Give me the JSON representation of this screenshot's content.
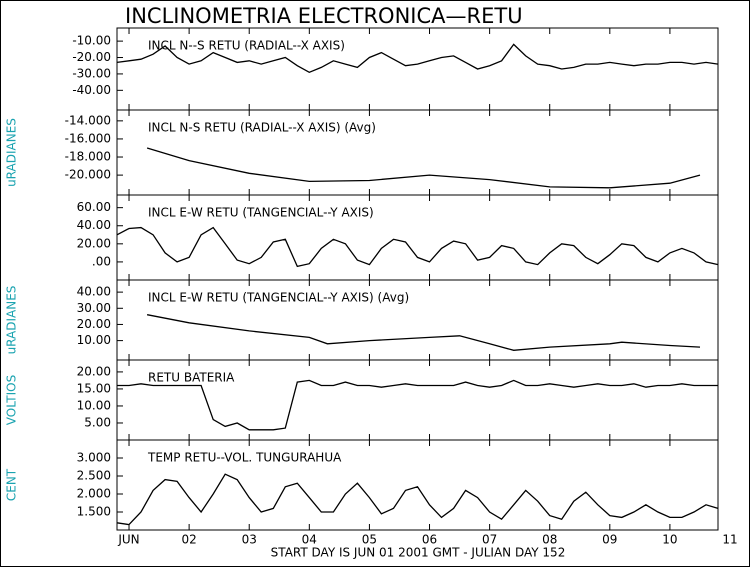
{
  "title": "INCLINOMETRIA ELECTRONICA—RETU",
  "xlabel": "START DAY IS JUN 01 2001 GMT    - JULIAN DAY 152",
  "xlim": [
    0.8,
    10.8
  ],
  "xticks": [
    {
      "value": 1,
      "label": "JUN"
    },
    {
      "value": 2,
      "label": "02"
    },
    {
      "value": 3,
      "label": "03"
    },
    {
      "value": 4,
      "label": "04"
    },
    {
      "value": 5,
      "label": "05"
    },
    {
      "value": 6,
      "label": "06"
    },
    {
      "value": 7,
      "label": "07"
    },
    {
      "value": 8,
      "label": "08"
    },
    {
      "value": 9,
      "label": "09"
    },
    {
      "value": 10,
      "label": "10"
    },
    11
  ],
  "chart_data": [
    {
      "type": "line",
      "title": "INCL N--S RETU (RADIAL--X AXIS)",
      "color": "#000000",
      "ylim": [
        -52,
        -2
      ],
      "yticks": [
        {
          "value": -10,
          "label": "-10.00"
        },
        {
          "value": -20,
          "label": "-20.00"
        },
        {
          "value": -30,
          "label": "-30.00"
        },
        {
          "value": -40,
          "label": "-40.00"
        }
      ],
      "x": [
        0.8,
        1,
        1.2,
        1.4,
        1.6,
        1.8,
        2,
        2.2,
        2.4,
        2.6,
        2.8,
        3,
        3.2,
        3.4,
        3.6,
        3.8,
        4,
        4.2,
        4.4,
        4.6,
        4.8,
        5,
        5.2,
        5.4,
        5.6,
        5.8,
        6,
        6.2,
        6.4,
        6.6,
        6.8,
        7,
        7.2,
        7.4,
        7.6,
        7.8,
        8,
        8.2,
        8.4,
        8.6,
        8.8,
        9,
        9.2,
        9.4,
        9.6,
        9.8,
        10,
        10.2,
        10.4,
        10.6,
        10.8
      ],
      "values": [
        -23,
        -22,
        -21,
        -18,
        -13,
        -20,
        -24,
        -22,
        -17,
        -20,
        -23,
        -22,
        -24,
        -22,
        -20,
        -25,
        -29,
        -26,
        -22,
        -24,
        -26,
        -20,
        -17,
        -21,
        -25,
        -24,
        -22,
        -20,
        -19,
        -23,
        -27,
        -25,
        -22,
        -12,
        -19,
        -24,
        -25,
        -27,
        -26,
        -24,
        -24,
        -23,
        -24,
        -25,
        -24,
        -24,
        -23,
        -23,
        -24,
        -23,
        -24
      ]
    },
    {
      "type": "line",
      "title": "INCL N-S RETU (RADIAL--X AXIS) (Avg)",
      "ylabel": "uRADIANES",
      "color": "#000000",
      "ylim": [
        -22.2,
        -12.8
      ],
      "yticks": [
        {
          "value": -14,
          "label": "-14.000"
        },
        {
          "value": -16,
          "label": "-16.000"
        },
        {
          "value": -18,
          "label": "-18.000"
        },
        {
          "value": -20,
          "label": "-20.000"
        }
      ],
      "x": [
        1.3,
        2,
        3,
        4,
        5,
        6,
        7,
        8,
        9,
        10,
        10.5
      ],
      "values": [
        -17.0,
        -18.4,
        -19.8,
        -20.7,
        -20.6,
        -20.0,
        -20.5,
        -21.3,
        -21.4,
        -20.9,
        -20.0
      ]
    },
    {
      "type": "line",
      "title": "INCL E-W RETU (TANGENCIAL--Y AXIS)",
      "color": "#000000",
      "ylim": [
        -20,
        74
      ],
      "yticks": [
        {
          "value": 60,
          "label": "60.00"
        },
        {
          "value": 40,
          "label": "40.00"
        },
        {
          "value": 20,
          "label": "20.00"
        },
        {
          "value": 0,
          "label": ".00"
        }
      ],
      "x": [
        0.8,
        1,
        1.2,
        1.4,
        1.6,
        1.8,
        2,
        2.2,
        2.4,
        2.6,
        2.8,
        3,
        3.2,
        3.4,
        3.6,
        3.8,
        4,
        4.2,
        4.4,
        4.6,
        4.8,
        5,
        5.2,
        5.4,
        5.6,
        5.8,
        6,
        6.2,
        6.4,
        6.6,
        6.8,
        7,
        7.2,
        7.4,
        7.6,
        7.8,
        8,
        8.2,
        8.4,
        8.6,
        8.8,
        9,
        9.2,
        9.4,
        9.6,
        9.8,
        10,
        10.2,
        10.4,
        10.6,
        10.8
      ],
      "values": [
        30,
        37,
        38,
        30,
        10,
        0,
        5,
        30,
        38,
        20,
        2,
        -2,
        5,
        22,
        25,
        -5,
        -2,
        15,
        25,
        20,
        2,
        -3,
        15,
        25,
        22,
        5,
        0,
        15,
        23,
        20,
        2,
        5,
        18,
        15,
        0,
        -3,
        10,
        20,
        18,
        5,
        -2,
        8,
        20,
        18,
        5,
        0,
        10,
        15,
        10,
        0,
        -3
      ]
    },
    {
      "type": "line",
      "title": "INCL E-W RETU (TANGENCIAL--Y AXIS) (Avg)",
      "ylabel": "uRADIANES",
      "color": "#000000",
      "ylim": [
        -2,
        47.5
      ],
      "yticks": [
        {
          "value": 40,
          "label": "40.00"
        },
        {
          "value": 30,
          "label": "30.00"
        },
        {
          "value": 20,
          "label": "20.00"
        },
        {
          "value": 10,
          "label": "10.00"
        }
      ],
      "x": [
        1.3,
        2,
        3,
        4,
        4.3,
        5,
        6,
        6.5,
        7,
        7.4,
        8,
        9,
        9.2,
        10,
        10.5
      ],
      "values": [
        26,
        21,
        16,
        12,
        8,
        10,
        12,
        13,
        8,
        4,
        6,
        8,
        9,
        7,
        6
      ]
    },
    {
      "type": "line",
      "title": "RETU BATERIA",
      "ylabel": "VOLTIOS",
      "color": "#000000",
      "ylim": [
        0,
        23.5
      ],
      "yticks": [
        {
          "value": 20,
          "label": "20.00"
        },
        {
          "value": 15,
          "label": "15.00"
        },
        {
          "value": 10,
          "label": "10.00"
        },
        {
          "value": 5,
          "label": "5.00"
        }
      ],
      "x": [
        0.8,
        1,
        1.2,
        1.4,
        1.6,
        1.8,
        2,
        2.2,
        2.4,
        2.6,
        2.8,
        3,
        3.2,
        3.4,
        3.6,
        3.8,
        4,
        4.2,
        4.4,
        4.6,
        4.8,
        5,
        5.2,
        5.4,
        5.6,
        5.8,
        6,
        6.2,
        6.4,
        6.6,
        6.8,
        7,
        7.2,
        7.4,
        7.6,
        7.8,
        8,
        8.2,
        8.4,
        8.6,
        8.8,
        9,
        9.2,
        9.4,
        9.6,
        9.8,
        10,
        10.2,
        10.4,
        10.6,
        10.8
      ],
      "values": [
        16,
        16,
        16.5,
        16,
        16,
        16,
        16,
        16,
        6,
        4,
        5,
        3,
        3,
        3,
        3.5,
        17,
        17.5,
        16,
        16,
        17,
        16,
        16,
        15.5,
        16,
        16.5,
        16,
        16,
        16,
        16,
        17,
        16,
        15.5,
        16,
        17.5,
        16,
        16,
        16.5,
        16,
        15.5,
        16,
        16.5,
        16,
        16,
        16.5,
        15.5,
        16,
        16,
        16.5,
        16,
        16,
        16
      ]
    },
    {
      "type": "line",
      "title": "TEMP RETU--VOL. TUNGURAHUA",
      "ylabel": "CENT",
      "color": "#000000",
      "ylim": [
        1.0,
        3.5
      ],
      "yticks": [
        {
          "value": 3,
          "label": "3.000"
        },
        {
          "value": 2.5,
          "label": "2.500"
        },
        {
          "value": 2,
          "label": "2.000"
        },
        {
          "value": 1.5,
          "label": "1.500"
        }
      ],
      "x": [
        0.8,
        1,
        1.2,
        1.4,
        1.6,
        1.8,
        2,
        2.2,
        2.4,
        2.6,
        2.8,
        3,
        3.2,
        3.4,
        3.6,
        3.8,
        4,
        4.2,
        4.4,
        4.6,
        4.8,
        5,
        5.2,
        5.4,
        5.6,
        5.8,
        6,
        6.2,
        6.4,
        6.6,
        6.8,
        7,
        7.2,
        7.4,
        7.6,
        7.8,
        8,
        8.2,
        8.4,
        8.6,
        8.8,
        9,
        9.2,
        9.4,
        9.6,
        9.8,
        10,
        10.2,
        10.4,
        10.6,
        10.8
      ],
      "values": [
        1.2,
        1.15,
        1.5,
        2.1,
        2.4,
        2.35,
        1.9,
        1.5,
        2.0,
        2.55,
        2.4,
        1.9,
        1.5,
        1.6,
        2.2,
        2.3,
        1.9,
        1.5,
        1.5,
        2.0,
        2.3,
        1.9,
        1.45,
        1.6,
        2.1,
        2.2,
        1.7,
        1.35,
        1.6,
        2.1,
        1.9,
        1.5,
        1.3,
        1.7,
        2.1,
        1.8,
        1.4,
        1.3,
        1.8,
        2.05,
        1.7,
        1.4,
        1.35,
        1.5,
        1.7,
        1.5,
        1.35,
        1.35,
        1.5,
        1.7,
        1.6
      ]
    }
  ]
}
